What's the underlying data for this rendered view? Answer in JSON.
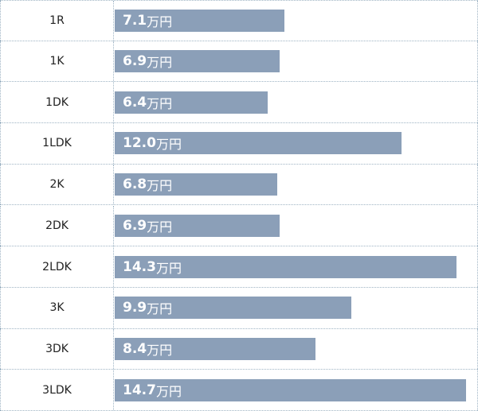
{
  "chart_data": {
    "type": "bar",
    "orientation": "horizontal",
    "categories": [
      "1R",
      "1K",
      "1DK",
      "1LDK",
      "2K",
      "2DK",
      "2LDK",
      "3K",
      "3DK",
      "3LDK"
    ],
    "values": [
      7.1,
      6.9,
      6.4,
      12.0,
      6.8,
      6.9,
      14.3,
      9.9,
      8.4,
      14.7
    ],
    "value_labels": [
      "7.1",
      "6.9",
      "6.4",
      "12.0",
      "6.8",
      "6.9",
      "14.3",
      "9.9",
      "8.4",
      "14.7"
    ],
    "unit": "万円",
    "bar_color": "#8b9fb8",
    "grid": true
  }
}
